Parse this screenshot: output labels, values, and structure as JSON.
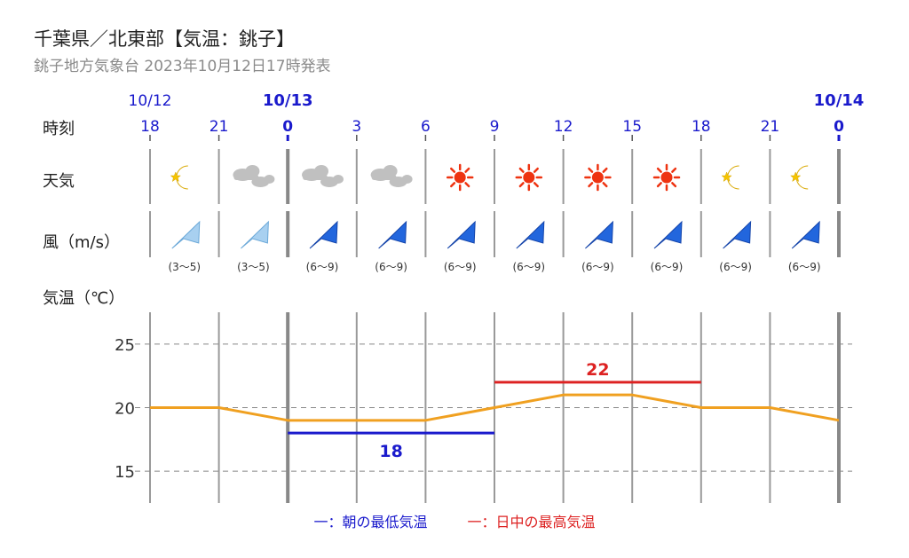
{
  "header": {
    "title": "千葉県／北東部【気温：銚子】",
    "subtitle": "銚子地方気象台 2023年10月12日17時発表"
  },
  "rows": {
    "time_label": "時刻",
    "weather_label": "天気",
    "wind_label": "風（m/s）",
    "temp_label": "気温（℃）"
  },
  "dates": [
    {
      "label": "10/12",
      "hour": "18",
      "bold": false
    },
    {
      "label": "10/13",
      "hour": "0",
      "bold": true
    },
    {
      "label": "10/14",
      "hour": "0",
      "bold": true
    }
  ],
  "hours": [
    "18",
    "21",
    "0",
    "3",
    "6",
    "9",
    "12",
    "15",
    "18",
    "21",
    "0"
  ],
  "periods": [
    {
      "weather": "clear-night",
      "wind": "(3～5)",
      "wind_strength": "light"
    },
    {
      "weather": "cloudy",
      "wind": "(3～5)",
      "wind_strength": "light"
    },
    {
      "weather": "cloudy",
      "wind": "(6～9)",
      "wind_strength": "moderate"
    },
    {
      "weather": "cloudy",
      "wind": "(6～9)",
      "wind_strength": "moderate"
    },
    {
      "weather": "sunny",
      "wind": "(6～9)",
      "wind_strength": "moderate"
    },
    {
      "weather": "sunny",
      "wind": "(6～9)",
      "wind_strength": "moderate"
    },
    {
      "weather": "sunny",
      "wind": "(6～9)",
      "wind_strength": "moderate"
    },
    {
      "weather": "sunny",
      "wind": "(6～9)",
      "wind_strength": "moderate"
    },
    {
      "weather": "clear-night",
      "wind": "(6～9)",
      "wind_strength": "moderate"
    },
    {
      "weather": "clear-night",
      "wind": "(6～9)",
      "wind_strength": "moderate"
    }
  ],
  "colors": {
    "date_blue": "#1a1acc",
    "temp_line": "#f0a020",
    "min_line": "#1a1acc",
    "max_line": "#dd2222",
    "wind_light": "#a8d0f0",
    "wind_moderate": "#2266dd",
    "sun": "#ee3311",
    "moon": "#f5c400",
    "cloud": "#c0c0c0"
  },
  "chart_data": {
    "type": "line",
    "x": [
      "18",
      "21",
      "0",
      "3",
      "6",
      "9",
      "12",
      "15",
      "18",
      "21",
      "0"
    ],
    "series": [
      {
        "values": [
          20,
          20,
          19,
          19,
          19,
          20,
          21,
          21,
          20,
          20,
          19
        ]
      }
    ],
    "ylim": [
      12.5,
      27.5
    ],
    "yticks": [
      "15",
      "20",
      "25"
    ],
    "min_temp": {
      "value": "18",
      "from_index": 2,
      "to_index": 5
    },
    "max_temp": {
      "value": "22",
      "from_index": 5,
      "to_index": 8
    },
    "grid": true
  },
  "legend": {
    "min_label": "一：朝の最低気温",
    "max_label": "一：日中の最高気温"
  }
}
